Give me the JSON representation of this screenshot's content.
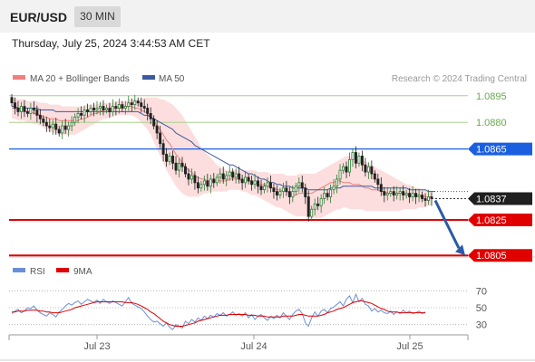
{
  "header": {
    "symbol": "EUR/USD",
    "timeframe": "30 MIN",
    "timestamp": "Thursday, July 25, 2024 3:44:53 AM CET"
  },
  "legend": {
    "ma20_label": "MA 20 + Bollinger Bands",
    "ma50_label": "MA 50",
    "credit": "Research © 2024 Trading Central",
    "ma20_color": "#f08080",
    "ma50_color": "#3b5aa0"
  },
  "rsi_legend": {
    "rsi_label": "RSI",
    "ma9_label": "9MA",
    "rsi_color": "#6b8fd6",
    "ma9_color": "#e00000"
  },
  "chart_data": [
    {
      "type": "candlestick",
      "ylim": [
        1.08,
        1.09
      ],
      "x_ticks": [
        "Jul 23",
        "Jul 24",
        "Jul 25"
      ],
      "current_price": "1.0837",
      "forecast": {
        "direction": "down",
        "target": "1.0805"
      },
      "levels": [
        {
          "label": "1.0895",
          "value": 1.0895,
          "kind": "resistance-minor",
          "color": "#a8d08d"
        },
        {
          "label": "1.0880",
          "value": 1.088,
          "kind": "resistance-minor",
          "color": "#a8d08d"
        },
        {
          "label": "1.0865",
          "value": 1.0865,
          "kind": "pivot",
          "color": "#1a5fe0"
        },
        {
          "label": "1.0825",
          "value": 1.0825,
          "kind": "support",
          "color": "#e00000"
        },
        {
          "label": "1.0805",
          "value": 1.0805,
          "kind": "support",
          "color": "#e00000"
        }
      ],
      "close": [
        1.0891,
        1.0888,
        1.0886,
        1.0889,
        1.0886,
        1.0885,
        1.0888,
        1.0887,
        1.0884,
        1.0882,
        1.088,
        1.0878,
        1.0877,
        1.0879,
        1.0876,
        1.0874,
        1.0878,
        1.0876,
        1.0878,
        1.088,
        1.0883,
        1.0885,
        1.0884,
        1.0887,
        1.0886,
        1.0888,
        1.0887,
        1.0888,
        1.0889,
        1.0887,
        1.0888,
        1.0886,
        1.0889,
        1.0888,
        1.089,
        1.0888,
        1.0889,
        1.0891,
        1.089,
        1.0892,
        1.0891,
        1.0889,
        1.0888,
        1.0885,
        1.0882,
        1.0878,
        1.0874,
        1.0868,
        1.0862,
        1.0858,
        1.0861,
        1.0857,
        1.0853,
        1.0857,
        1.0855,
        1.0851,
        1.0848,
        1.085,
        1.0846,
        1.0843,
        1.0845,
        1.0847,
        1.0844,
        1.0848,
        1.0846,
        1.0849,
        1.0851,
        1.0848,
        1.085,
        1.0852,
        1.0849,
        1.0851,
        1.0848,
        1.0846,
        1.0849,
        1.0847,
        1.0845,
        1.0847,
        1.0844,
        1.0842,
        1.0844,
        1.0846,
        1.0843,
        1.0841,
        1.0839,
        1.0841,
        1.0843,
        1.0841,
        1.0838,
        1.0841,
        1.0844,
        1.0846,
        1.0843,
        1.0838,
        1.0827,
        1.0831,
        1.0834,
        1.0833,
        1.0837,
        1.084,
        1.0838,
        1.0842,
        1.0844,
        1.0848,
        1.0853,
        1.0855,
        1.0852,
        1.0859,
        1.0863,
        1.0857,
        1.0861,
        1.0856,
        1.0852,
        1.0855,
        1.0851,
        1.0848,
        1.0845,
        1.0841,
        1.0839,
        1.084,
        1.0841,
        1.0839,
        1.084,
        1.0841,
        1.0839,
        1.084,
        1.0838,
        1.084,
        1.0838,
        1.0839,
        1.0837,
        1.0836,
        1.0838,
        1.0837
      ],
      "ma20": [
        1.0888,
        1.0888,
        1.0887,
        1.0887,
        1.0887,
        1.0886,
        1.0886,
        1.0885,
        1.0885,
        1.0884,
        1.0883,
        1.0883,
        1.0882,
        1.0882,
        1.0882,
        1.0881,
        1.0881,
        1.0881,
        1.0881,
        1.0881,
        1.0881,
        1.0881,
        1.0882,
        1.0882,
        1.0883,
        1.0884,
        1.0885,
        1.0885,
        1.0886,
        1.0887,
        1.0887,
        1.0887,
        1.0888,
        1.0888,
        1.0888,
        1.0888,
        1.0889,
        1.0889,
        1.0889,
        1.0888,
        1.0888,
        1.0887,
        1.0886,
        1.0885,
        1.0883,
        1.0881,
        1.0878,
        1.0876,
        1.0873,
        1.087,
        1.0868,
        1.0865,
        1.0862,
        1.086,
        1.0857,
        1.0855,
        1.0853,
        1.0852,
        1.085,
        1.0849,
        1.0848,
        1.0848,
        1.0847,
        1.0847,
        1.0847,
        1.0847,
        1.0847,
        1.0847,
        1.0847,
        1.0848,
        1.0848,
        1.0848,
        1.0848,
        1.0847,
        1.0847,
        1.0847,
        1.0846,
        1.0846,
        1.0845,
        1.0845,
        1.0845,
        1.0844,
        1.0843,
        1.0843,
        1.0842,
        1.0842,
        1.0841,
        1.0841,
        1.084,
        1.0839,
        1.0839,
        1.084,
        1.084,
        1.084,
        1.084,
        1.084,
        1.0841,
        1.0842,
        1.0843,
        1.0844,
        1.0845,
        1.0846,
        1.0846,
        1.0847,
        1.0847,
        1.0846,
        1.0846,
        1.0846,
        1.0845,
        1.0845,
        1.0845,
        1.0844,
        1.0843,
        1.0843,
        1.0842,
        1.0842,
        1.0842,
        1.0841,
        1.0841,
        1.084,
        1.084,
        1.084,
        1.084,
        1.084,
        1.084,
        1.0839,
        1.0839,
        1.0839,
        1.0839,
        1.0839,
        1.0838,
        1.0838,
        1.0838,
        1.0838
      ],
      "bb_upper": [
        1.0894,
        1.0894,
        1.0893,
        1.0893,
        1.0893,
        1.0892,
        1.0892,
        1.0892,
        1.0892,
        1.0891,
        1.0891,
        1.0891,
        1.089,
        1.089,
        1.089,
        1.089,
        1.0889,
        1.0889,
        1.0889,
        1.0889,
        1.0889,
        1.0889,
        1.0889,
        1.0889,
        1.089,
        1.089,
        1.089,
        1.089,
        1.0891,
        1.0891,
        1.0891,
        1.0891,
        1.0891,
        1.0892,
        1.0892,
        1.0892,
        1.0892,
        1.0893,
        1.0893,
        1.0893,
        1.0893,
        1.0893,
        1.0894,
        1.0894,
        1.0894,
        1.0894,
        1.0894,
        1.0893,
        1.0893,
        1.0892,
        1.0891,
        1.089,
        1.0888,
        1.0886,
        1.0884,
        1.0881,
        1.0878,
        1.0875,
        1.0872,
        1.0869,
        1.0866,
        1.0864,
        1.0862,
        1.086,
        1.0858,
        1.0856,
        1.0855,
        1.0854,
        1.0853,
        1.0853,
        1.0853,
        1.0853,
        1.0853,
        1.0853,
        1.0853,
        1.0853,
        1.0853,
        1.0853,
        1.0852,
        1.0852,
        1.0852,
        1.0852,
        1.0851,
        1.0851,
        1.0851,
        1.0851,
        1.0851,
        1.085,
        1.085,
        1.085,
        1.085,
        1.0851,
        1.0851,
        1.0851,
        1.0851,
        1.0851,
        1.0851,
        1.0852,
        1.0853,
        1.0854,
        1.0855,
        1.0856,
        1.0857,
        1.0858,
        1.0859,
        1.086,
        1.0861,
        1.0861,
        1.086,
        1.0859,
        1.0859,
        1.0858,
        1.0858,
        1.0857,
        1.0856,
        1.0855,
        1.0854,
        1.0853,
        1.0852,
        1.0851,
        1.085,
        1.0849,
        1.0848,
        1.0847,
        1.0846,
        1.0845,
        1.0845,
        1.0844,
        1.0843,
        1.0843,
        1.0842,
        1.0842,
        1.0841,
        1.0841
      ],
      "bb_lower": [
        1.0882,
        1.0882,
        1.0881,
        1.0881,
        1.0881,
        1.088,
        1.088,
        1.0879,
        1.0879,
        1.0878,
        1.0877,
        1.0876,
        1.0875,
        1.0874,
        1.0874,
        1.0873,
        1.0873,
        1.0873,
        1.0873,
        1.0873,
        1.0873,
        1.0874,
        1.0875,
        1.0876,
        1.0877,
        1.0878,
        1.0879,
        1.088,
        1.0881,
        1.0882,
        1.0882,
        1.0883,
        1.0883,
        1.0884,
        1.0884,
        1.0884,
        1.0884,
        1.0884,
        1.0884,
        1.0883,
        1.0882,
        1.088,
        1.0878,
        1.0876,
        1.0873,
        1.0869,
        1.0865,
        1.0861,
        1.0857,
        1.0853,
        1.085,
        1.0847,
        1.0844,
        1.0842,
        1.084,
        1.0839,
        1.0838,
        1.0838,
        1.0838,
        1.0838,
        1.0839,
        1.084,
        1.084,
        1.0841,
        1.0841,
        1.0841,
        1.0841,
        1.0841,
        1.0841,
        1.0842,
        1.0842,
        1.0842,
        1.0842,
        1.0841,
        1.0841,
        1.084,
        1.0839,
        1.0839,
        1.0838,
        1.0837,
        1.0836,
        1.0835,
        1.0834,
        1.0833,
        1.0832,
        1.0832,
        1.0831,
        1.083,
        1.0829,
        1.0828,
        1.0827,
        1.0827,
        1.0827,
        1.0827,
        1.0826,
        1.0826,
        1.0826,
        1.0826,
        1.0826,
        1.0827,
        1.0828,
        1.0829,
        1.083,
        1.0831,
        1.0831,
        1.0832,
        1.0832,
        1.0831,
        1.0831,
        1.0831,
        1.0831,
        1.0831,
        1.083,
        1.083,
        1.083,
        1.083,
        1.083,
        1.083,
        1.083,
        1.083,
        1.083,
        1.083,
        1.083,
        1.083,
        1.0831,
        1.0831,
        1.0831,
        1.0831,
        1.0831,
        1.0832,
        1.0832,
        1.0832,
        1.0833,
        1.0833
      ],
      "ma50": [
        1.0889,
        1.0889,
        1.0888,
        1.0888,
        1.0888,
        1.0888,
        1.0888,
        1.0888,
        1.0888,
        1.0887,
        1.0887,
        1.0887,
        1.0887,
        1.0887,
        1.0886,
        1.0886,
        1.0886,
        1.0886,
        1.0886,
        1.0886,
        1.0886,
        1.0886,
        1.0886,
        1.0886,
        1.0886,
        1.0886,
        1.0886,
        1.0886,
        1.0886,
        1.0886,
        1.0886,
        1.0886,
        1.0886,
        1.0886,
        1.0886,
        1.0886,
        1.0886,
        1.0886,
        1.0886,
        1.0886,
        1.0886,
        1.0885,
        1.0884,
        1.0884,
        1.0883,
        1.0882,
        1.0881,
        1.088,
        1.0879,
        1.0878,
        1.0877,
        1.0876,
        1.0874,
        1.0873,
        1.0872,
        1.0871,
        1.087,
        1.0869,
        1.0867,
        1.0866,
        1.0865,
        1.0864,
        1.0863,
        1.0862,
        1.0861,
        1.086,
        1.0859,
        1.0858,
        1.0857,
        1.0856,
        1.0856,
        1.0855,
        1.0854,
        1.0853,
        1.0852,
        1.0851,
        1.0851,
        1.085,
        1.0849,
        1.0848,
        1.0848,
        1.0847,
        1.0846,
        1.0846,
        1.0845,
        1.0845,
        1.0844,
        1.0844,
        1.0844,
        1.0843,
        1.0843,
        1.0843,
        1.0843,
        1.0843,
        1.0842,
        1.0842,
        1.0842,
        1.0842,
        1.0842,
        1.0842,
        1.0842,
        1.0843,
        1.0843,
        1.0843,
        1.0843,
        1.0844,
        1.0844,
        1.0844,
        1.0844,
        1.0844,
        1.0844,
        1.0844,
        1.0844,
        1.0844,
        1.0844,
        1.0843,
        1.0843,
        1.0843,
        1.0843,
        1.0843,
        1.0843,
        1.0843,
        1.0843,
        1.0843,
        1.0843,
        1.0843,
        1.0842,
        1.0842,
        1.0842,
        1.0842,
        1.0842,
        1.0842,
        1.0841,
        1.0841,
        1.0841
      ]
    },
    {
      "type": "line",
      "x_ticks": [
        "Jul 23",
        "Jul 24",
        "Jul 25"
      ],
      "ylim": [
        20,
        80
      ],
      "y_ticks": [
        "70",
        "50",
        "30"
      ],
      "y_tick_values": [
        70,
        50,
        30
      ],
      "series": [
        {
          "name": "RSI",
          "values": [
            43,
            46,
            48,
            44,
            46,
            50,
            49,
            52,
            47,
            44,
            42,
            40,
            44,
            42,
            39,
            45,
            48,
            52,
            55,
            53,
            56,
            58,
            54,
            57,
            60,
            58,
            56,
            59,
            55,
            60,
            57,
            55,
            58,
            56,
            54,
            52,
            57,
            62,
            55,
            53,
            51,
            49,
            45,
            40,
            36,
            33,
            34,
            31,
            28,
            32,
            27,
            24,
            30,
            28,
            26,
            34,
            31,
            36,
            33,
            38,
            35,
            40,
            37,
            41,
            39,
            43,
            41,
            44,
            40,
            42,
            45,
            41,
            43,
            40,
            44,
            38,
            42,
            36,
            40,
            42,
            38,
            35,
            40,
            37,
            41,
            38,
            44,
            40,
            36,
            42,
            46,
            48,
            43,
            32,
            28,
            38,
            45,
            40,
            46,
            48,
            44,
            49,
            51,
            54,
            57,
            52,
            60,
            64,
            56,
            66,
            57,
            61,
            54,
            52,
            46,
            49,
            45,
            47,
            44,
            43,
            46,
            42,
            45,
            43,
            47,
            44,
            46,
            43,
            44,
            46,
            43,
            45
          ]
        },
        {
          "name": "9MA",
          "values": [
            45,
            45,
            46,
            46,
            46,
            47,
            47,
            47,
            47,
            46,
            46,
            45,
            45,
            44,
            44,
            44,
            45,
            46,
            47,
            48,
            50,
            51,
            52,
            53,
            54,
            55,
            56,
            57,
            57,
            57,
            57,
            57,
            57,
            57,
            57,
            57,
            56,
            56,
            56,
            55,
            54,
            52,
            50,
            48,
            45,
            43,
            40,
            37,
            34,
            32,
            30,
            29,
            28,
            28,
            28,
            29,
            30,
            31,
            32,
            34,
            35,
            36,
            37,
            38,
            39,
            40,
            41,
            41,
            41,
            42,
            42,
            42,
            42,
            42,
            42,
            41,
            41,
            41,
            40,
            40,
            40,
            39,
            39,
            39,
            39,
            39,
            40,
            40,
            40,
            40,
            41,
            42,
            42,
            41,
            40,
            40,
            40,
            40,
            41,
            42,
            44,
            45,
            46,
            48,
            49,
            50,
            52,
            54,
            56,
            57,
            58,
            58,
            57,
            56,
            55,
            53,
            51,
            49,
            48,
            46,
            45,
            45,
            45,
            44,
            44,
            44,
            44,
            44,
            44,
            44,
            44,
            44
          ]
        }
      ]
    }
  ]
}
